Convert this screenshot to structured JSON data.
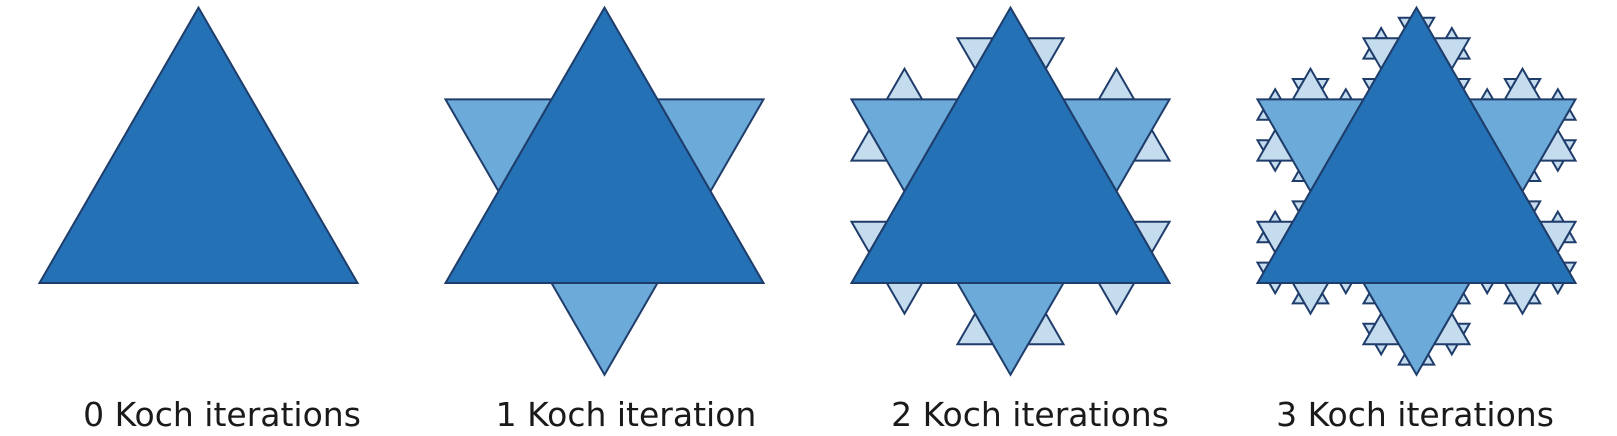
{
  "figure": {
    "panels": [
      {
        "iterations": 0,
        "caption": "0 Koch iterations"
      },
      {
        "iterations": 1,
        "caption": "1 Koch iteration"
      },
      {
        "iterations": 2,
        "caption": "2 Koch iterations"
      },
      {
        "iterations": 3,
        "caption": "3 Koch iterations"
      }
    ],
    "colors": {
      "base_triangle": "#2471b5",
      "iteration_1_triangles": "#6caad9",
      "iteration_2_triangles": "#c5dcef",
      "iteration_3_triangles": "#c5dcef",
      "outline": "#1f3d6b"
    }
  }
}
